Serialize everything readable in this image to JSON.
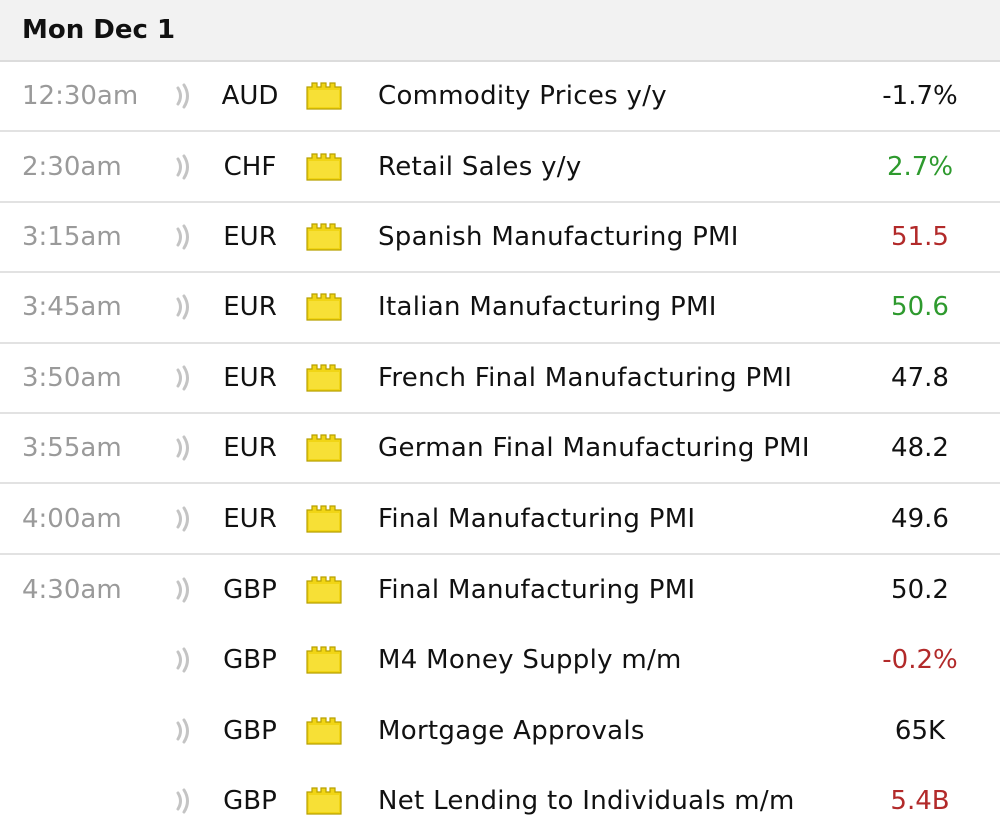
{
  "day": {
    "label": "Mon Dec 1"
  },
  "colors": {
    "positive": "#2e9a2e",
    "negative": "#b22a2a",
    "neutral": "#111111",
    "time": "#9a9a9a",
    "impact_icon": "#f1d515"
  },
  "icons": {
    "speaker": "speaker-icon",
    "impact": "folder-icon"
  },
  "events": [
    {
      "time": "12:30am",
      "currency": "AUD",
      "event": "Commodity Prices y/y",
      "value": "-1.7%",
      "trend": "neutral"
    },
    {
      "time": "2:30am",
      "currency": "CHF",
      "event": "Retail Sales y/y",
      "value": "2.7%",
      "trend": "up"
    },
    {
      "time": "3:15am",
      "currency": "EUR",
      "event": "Spanish Manufacturing PMI",
      "value": "51.5",
      "trend": "down"
    },
    {
      "time": "3:45am",
      "currency": "EUR",
      "event": "Italian Manufacturing PMI",
      "value": "50.6",
      "trend": "up"
    },
    {
      "time": "3:50am",
      "currency": "EUR",
      "event": "French Final Manufacturing PMI",
      "value": "47.8",
      "trend": "neutral"
    },
    {
      "time": "3:55am",
      "currency": "EUR",
      "event": "German Final Manufacturing PMI",
      "value": "48.2",
      "trend": "neutral"
    },
    {
      "time": "4:00am",
      "currency": "EUR",
      "event": "Final Manufacturing PMI",
      "value": "49.6",
      "trend": "neutral"
    },
    {
      "time": "4:30am",
      "currency": "GBP",
      "event": "Final Manufacturing PMI",
      "value": "50.2",
      "trend": "neutral"
    },
    {
      "time": "",
      "currency": "GBP",
      "event": "M4 Money Supply m/m",
      "value": "-0.2%",
      "trend": "down"
    },
    {
      "time": "",
      "currency": "GBP",
      "event": "Mortgage Approvals",
      "value": "65K",
      "trend": "neutral"
    },
    {
      "time": "",
      "currency": "GBP",
      "event": "Net Lending to Individuals m/m",
      "value": "5.4B",
      "trend": "down"
    }
  ]
}
